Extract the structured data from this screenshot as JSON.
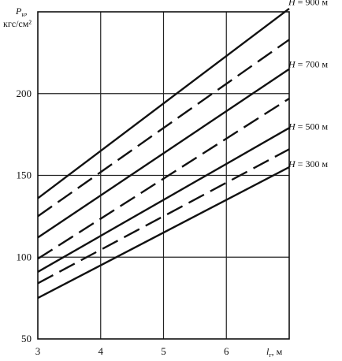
{
  "chart_data": {
    "type": "line",
    "xlabel": {
      "symbol": "l",
      "sub": "г",
      "unit": ", м"
    },
    "ylabel": {
      "symbol": "P",
      "sub": "н",
      "unit": "кгс/см²",
      "comma": ","
    },
    "xlim": [
      3,
      7
    ],
    "ylim": [
      50,
      250
    ],
    "x_ticks": [
      "3",
      "4",
      "5",
      "6"
    ],
    "y_ticks": [
      "50",
      "100",
      "150",
      "200"
    ],
    "grid": true,
    "series": [
      {
        "name": "H = 900 м",
        "style": "solid",
        "x": [
          3,
          7
        ],
        "y": [
          136,
          252
        ]
      },
      {
        "name": "",
        "style": "dashed",
        "x": [
          3,
          7
        ],
        "y": [
          125,
          233
        ]
      },
      {
        "name": "H = 700 м",
        "style": "solid",
        "x": [
          3,
          7
        ],
        "y": [
          112,
          215
        ]
      },
      {
        "name": "",
        "style": "dashed",
        "x": [
          3,
          7
        ],
        "y": [
          99,
          197
        ]
      },
      {
        "name": "H = 500 м",
        "style": "solid",
        "x": [
          3,
          7
        ],
        "y": [
          91,
          179
        ]
      },
      {
        "name": "",
        "style": "dashed",
        "x": [
          3,
          7
        ],
        "y": [
          84,
          166
        ]
      },
      {
        "name": "H = 300 м",
        "style": "solid",
        "x": [
          3,
          7
        ],
        "y": [
          75,
          155
        ]
      }
    ],
    "series_label_values": {
      "H = 900 м": 256,
      "H = 700 м": 218,
      "H = 500 м": 180,
      "H = 300 м": 157
    },
    "line_color": "#111111"
  }
}
